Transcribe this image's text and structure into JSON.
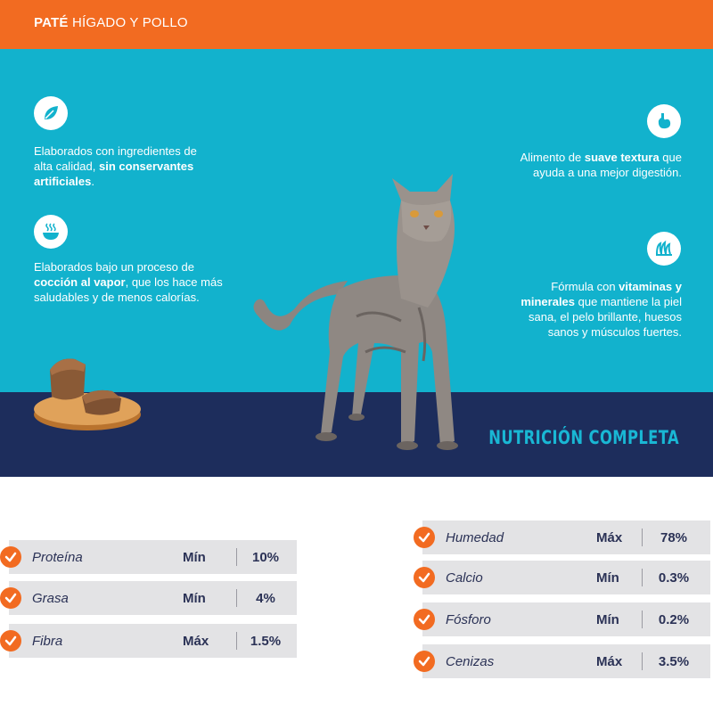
{
  "header": {
    "title_bold": "PATÉ",
    "title_rest": " HÍGADO Y POLLO"
  },
  "features": [
    {
      "icon": "leaf-icon",
      "pre": "Elaborados con ingredientes de alta calidad, ",
      "bold": "sin conservantes artificiales",
      "post": "."
    },
    {
      "icon": "steaming-bowl-icon",
      "pre": "Elaborados bajo un proceso de ",
      "bold": "cocción al vapor",
      "post": ", que los hace más saludables y de menos calorías."
    },
    {
      "icon": "stomach-icon",
      "pre": "Alimento de ",
      "bold": "suave textura",
      "post": " que ayuda a una mejor digestión."
    },
    {
      "icon": "cat-fur-icon",
      "pre": "Fórmula con ",
      "bold": "vitaminas y minerales",
      "post": " que mantiene la piel sana, el pelo brillante, huesos sanos y músculos fuertes."
    }
  ],
  "tagline": "NUTRICIÓN COMPLETA",
  "nutrition_left": [
    {
      "name": "Proteína",
      "kind": "Mín",
      "value": "10%"
    },
    {
      "name": "Grasa",
      "kind": "Mín",
      "value": "4%"
    },
    {
      "name": "Fibra",
      "kind": "Máx",
      "value": "1.5%"
    }
  ],
  "nutrition_right": [
    {
      "name": "Humedad",
      "kind": "Máx",
      "value": "78%"
    },
    {
      "name": "Calcio",
      "kind": "Mín",
      "value": "0.3%"
    },
    {
      "name": "Fósforo",
      "kind": "Mín",
      "value": "0.2%"
    },
    {
      "name": "Cenizas",
      "kind": "Máx",
      "value": "3.5%"
    }
  ],
  "colors": {
    "orange": "#f26b21",
    "teal": "#12b2cd",
    "navy": "#1d2d5c",
    "row_bg": "#e3e3e5",
    "text_dark": "#2b3256"
  }
}
